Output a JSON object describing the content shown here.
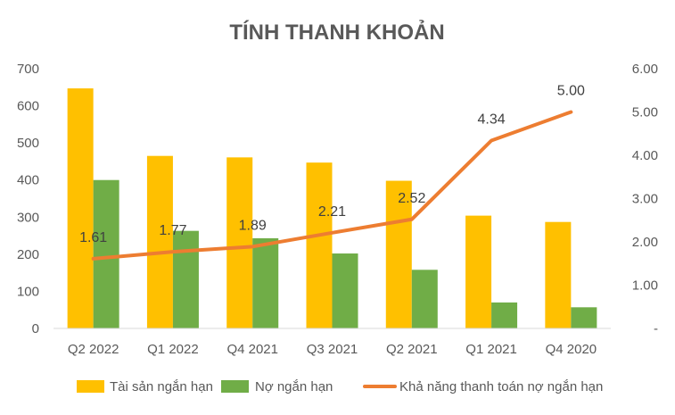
{
  "chart_data": {
    "type": "bar",
    "title": "TÍNH THANH KHOẢN",
    "categories": [
      "Q2 2022",
      "Q1 2022",
      "Q4 2021",
      "Q3 2021",
      "Q2 2021",
      "Q1 2021",
      "Q4 2020"
    ],
    "series": [
      {
        "name": "Tài sản ngắn hạn",
        "type": "bar",
        "axis": "left",
        "color": "#FFC000",
        "values": [
          647,
          465,
          461,
          447,
          398,
          304,
          287
        ]
      },
      {
        "name": "Nợ ngắn hạn",
        "type": "bar",
        "axis": "left",
        "color": "#70AD47",
        "values": [
          400,
          263,
          243,
          202,
          158,
          70,
          57
        ]
      },
      {
        "name": "Khả năng thanh toán nợ ngắn hạn",
        "type": "line",
        "axis": "right",
        "color": "#ED7D31",
        "values": [
          1.61,
          1.77,
          1.89,
          2.21,
          2.52,
          4.34,
          5.0
        ],
        "labels": [
          "1.61",
          "1.77",
          "1.89",
          "2.21",
          "2.52",
          "4.34",
          "5.00"
        ]
      }
    ],
    "y_left": {
      "min": 0,
      "max": 700,
      "ticks": [
        "0",
        "100",
        "200",
        "300",
        "400",
        "500",
        "600",
        "700"
      ]
    },
    "y_right": {
      "min": 0,
      "max": 6,
      "ticks": [
        "-",
        "1.00",
        "2.00",
        "3.00",
        "4.00",
        "5.00",
        "6.00"
      ]
    },
    "grid": false,
    "legend_position": "bottom"
  }
}
